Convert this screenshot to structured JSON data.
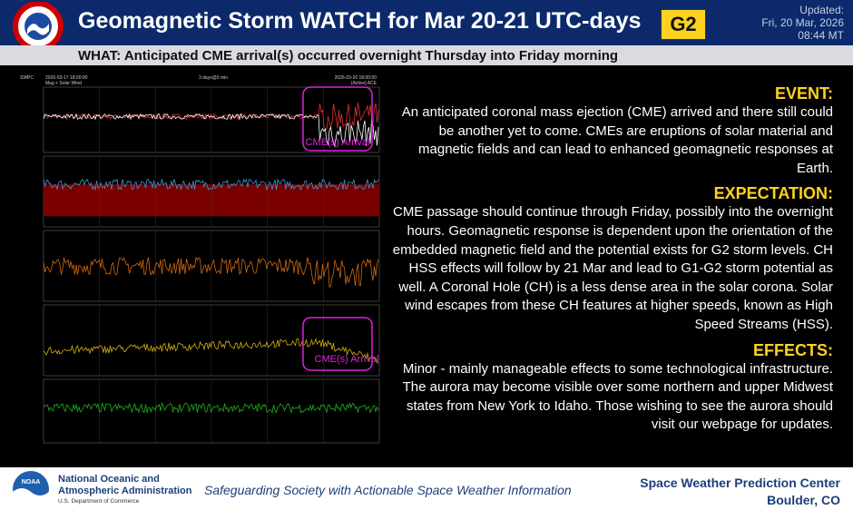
{
  "header": {
    "logo_text": "NATIONAL WEATHER SERVICE",
    "title": "Geomagnetic Storm WATCH for Mar 20-21 UTC-days",
    "level": "G2",
    "updated_label": "Updated:",
    "updated_date": "Fri, 20 Mar, 2026",
    "updated_time": "08:44 MT"
  },
  "what": "WHAT: Anticipated CME arrival(s) occurred overnight Thursday into Friday morning",
  "plot": {
    "source": "SWPC",
    "start": "2026-03-17 18:00:00",
    "span": "3 days@3 min",
    "end": "2026-03-20 18:00:00",
    "subtitle": "Mag + Solar Wind",
    "spacecraft": "[Active] ACE",
    "annotations": [
      "CME(s) Arrival",
      "CME(s) Arrival"
    ]
  },
  "sections": [
    {
      "heading": "EVENT:",
      "text": "An anticipated coronal mass ejection (CME) arrived and there still could be another yet to come. CMEs are eruptions of solar material and magnetic fields and can lead to enhanced geomagnetic responses at Earth."
    },
    {
      "heading": "EXPECTATION:",
      "text": "CME passage should continue through Friday, possibly into the overnight hours. Geomagnetic response is dependent upon the orientation of the embedded magnetic field and the potential exists for G2 storm levels. CH HSS effects will follow by 21 Mar and lead to G1-G2 storm potential as well. A Coronal Hole (CH) is a less dense area in the solar corona. Solar wind escapes from these CH features at higher speeds, known as High Speed Streams (HSS)."
    },
    {
      "heading": "EFFECTS:",
      "text": "Minor - mainly manageable effects to some technological infrastructure. The aurora may become visible over some northern and upper Midwest states from New York to Idaho. Those wishing to see the aurora should visit our webpage for updates."
    }
  ],
  "footer": {
    "logo_text": "NOAA",
    "org_line1": "National Oceanic and",
    "org_line2": "Atmospheric Administration",
    "org_line3": "U.S. Department of Commerce",
    "tagline": "Safeguarding Society with Actionable Space Weather Information",
    "center": "Space Weather Prediction Center",
    "location": "Boulder, CO"
  }
}
